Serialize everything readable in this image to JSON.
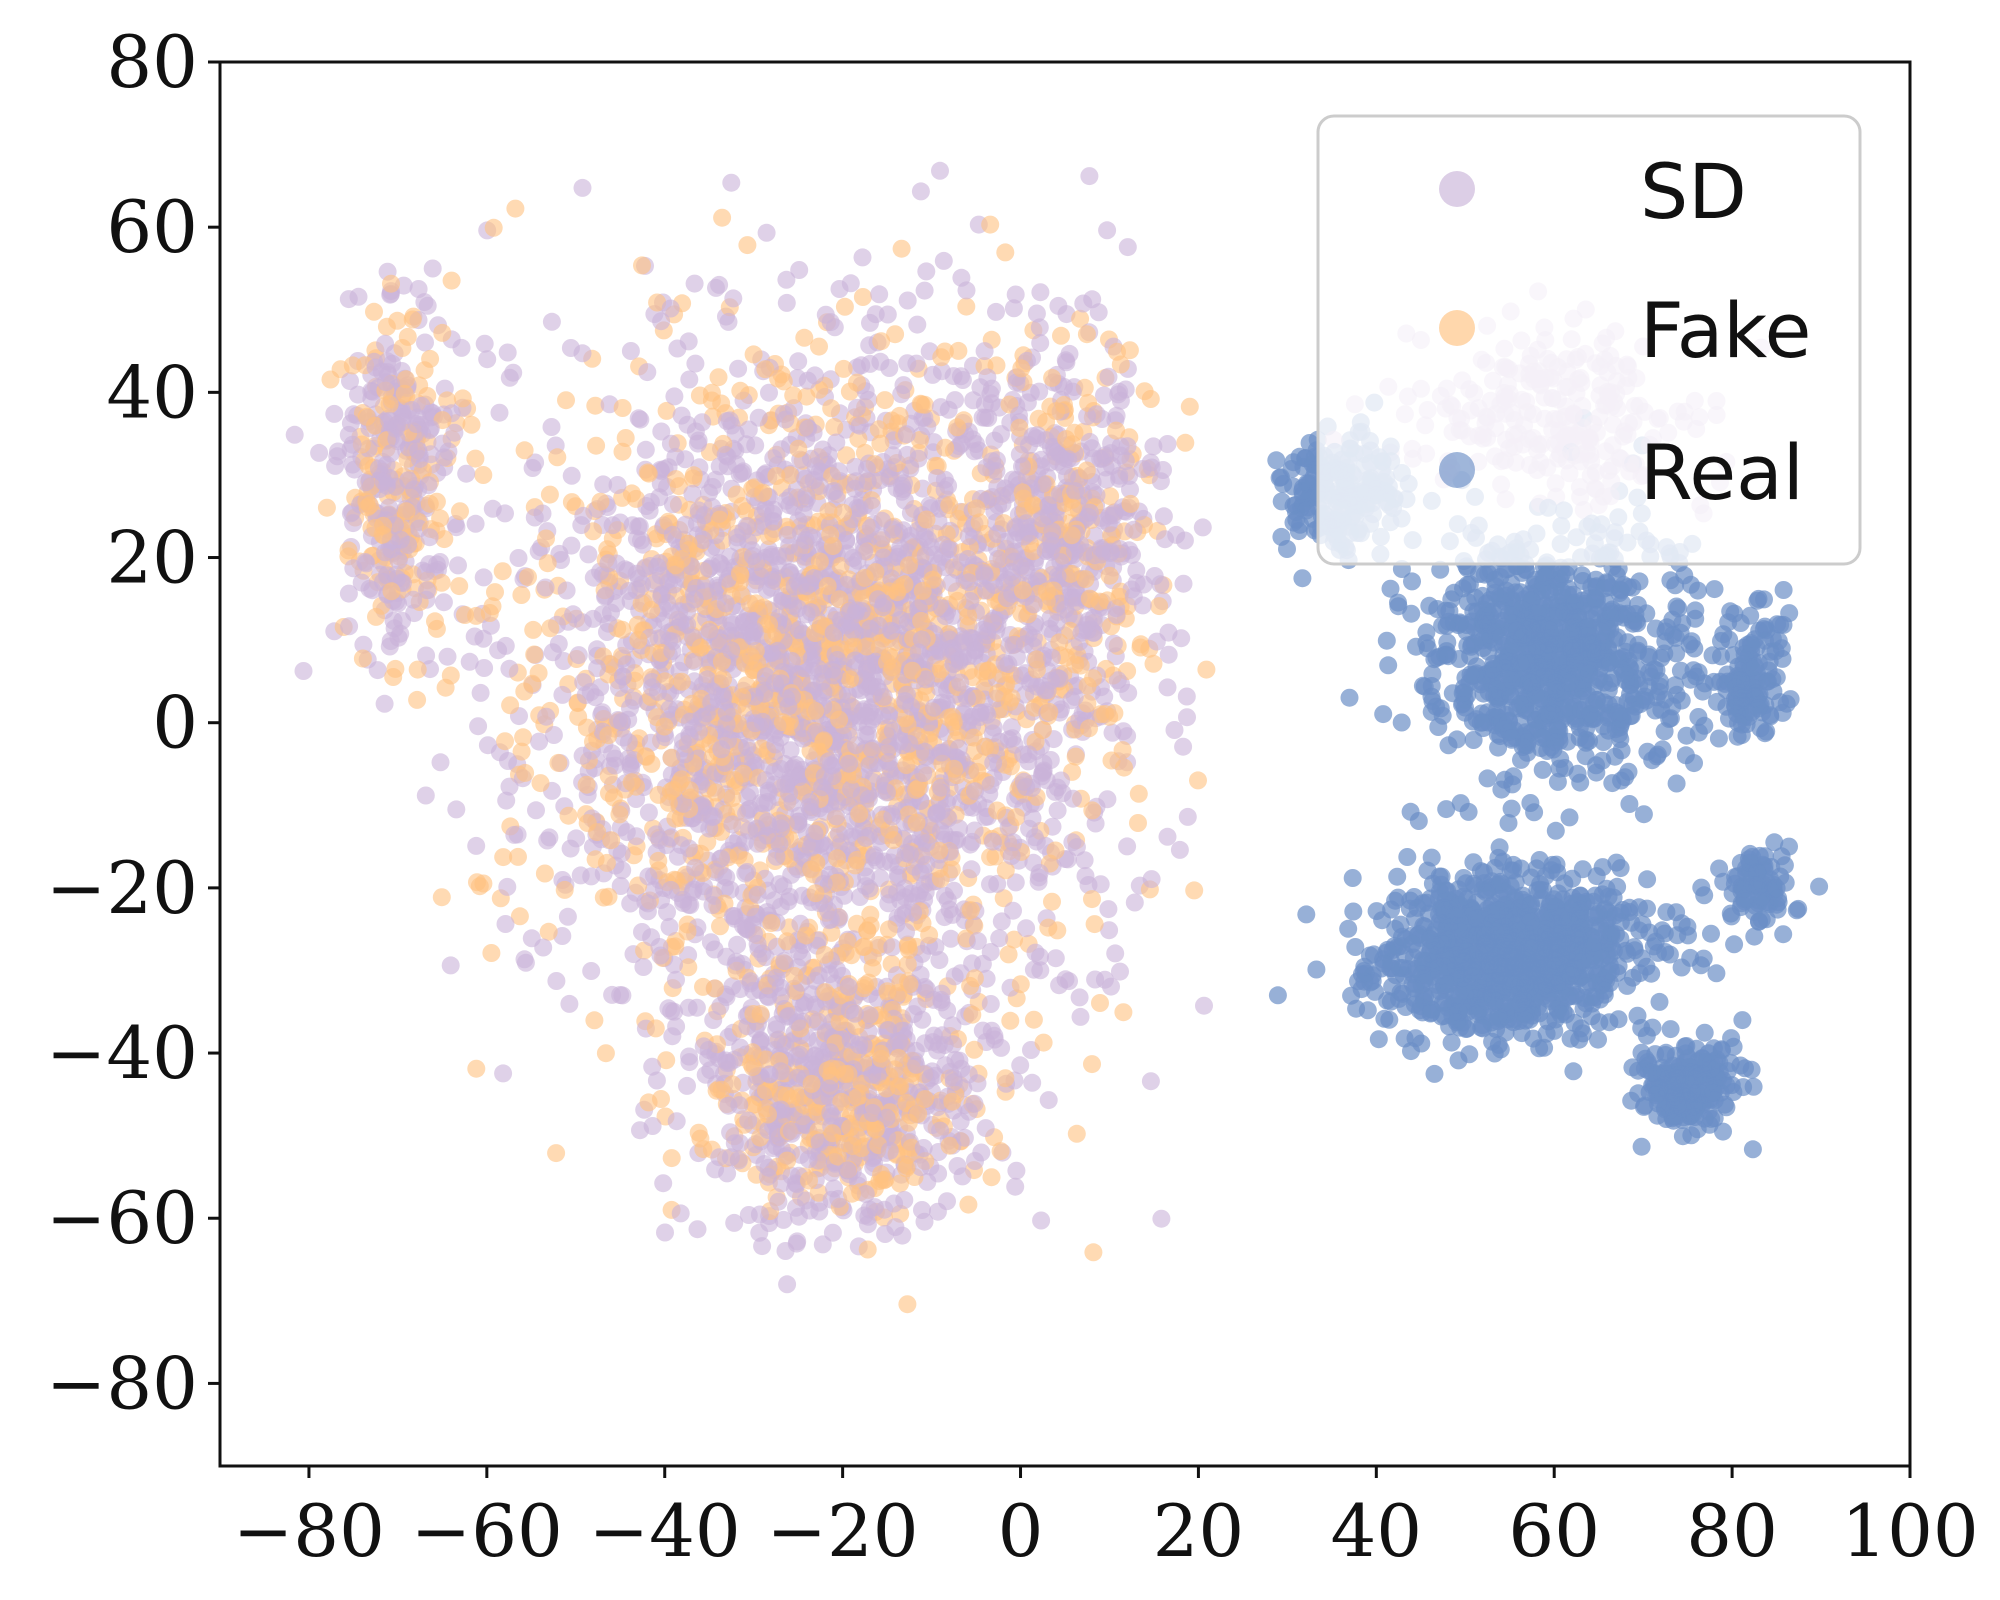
{
  "chart_data": {
    "type": "scatter",
    "title": "",
    "xlabel": "",
    "ylabel": "",
    "xlim": [
      -90,
      100
    ],
    "ylim": [
      -90,
      80
    ],
    "x_ticks": [
      -80,
      -60,
      -40,
      -20,
      0,
      20,
      40,
      60,
      80,
      100
    ],
    "y_ticks": [
      -80,
      -60,
      -40,
      -20,
      0,
      20,
      40,
      60,
      80
    ],
    "x_tick_labels": [
      "−80",
      "−60",
      "−40",
      "−20",
      "0",
      "20",
      "40",
      "60",
      "80",
      "100"
    ],
    "y_tick_labels": [
      "−80",
      "−60",
      "−40",
      "−20",
      "0",
      "20",
      "40",
      "60",
      "80"
    ],
    "grid": false,
    "legend_position": "top-right",
    "series": [
      {
        "name": "SD",
        "color": "#c9b3d9",
        "clusters": [
          {
            "cx": -22,
            "cy": 5,
            "sx": 30,
            "sy": 38,
            "n": 2300
          },
          {
            "cx": -70,
            "cy": 30,
            "sx": 6,
            "sy": 20,
            "n": 250
          },
          {
            "cx": -20,
            "cy": -45,
            "sx": 14,
            "sy": 14,
            "n": 500
          },
          {
            "cx": 5,
            "cy": 25,
            "sx": 10,
            "sy": 20,
            "n": 300
          },
          {
            "cx": 60,
            "cy": 38,
            "sx": 15,
            "sy": 10,
            "n": 250
          }
        ],
        "xrange": [
          -85,
          90
        ],
        "yrange": [
          -84,
          67
        ]
      },
      {
        "name": "Fake",
        "color": "#ffc180",
        "clusters": [
          {
            "cx": -22,
            "cy": 5,
            "sx": 30,
            "sy": 38,
            "n": 1300
          },
          {
            "cx": -70,
            "cy": 30,
            "sx": 6,
            "sy": 20,
            "n": 150
          },
          {
            "cx": -20,
            "cy": -45,
            "sx": 14,
            "sy": 14,
            "n": 300
          },
          {
            "cx": 5,
            "cy": 25,
            "sx": 10,
            "sy": 20,
            "n": 150
          }
        ],
        "xrange": [
          -85,
          25
        ],
        "yrange": [
          -84,
          67
        ]
      },
      {
        "name": "Real",
        "color": "#6b8fc6",
        "clusters": [
          {
            "cx": 60,
            "cy": 8,
            "sx": 13,
            "sy": 14,
            "n": 900
          },
          {
            "cx": 55,
            "cy": -28,
            "sx": 14,
            "sy": 9,
            "n": 1000
          },
          {
            "cx": 75,
            "cy": -44,
            "sx": 5,
            "sy": 5,
            "n": 200
          },
          {
            "cx": 82,
            "cy": 5,
            "sx": 4,
            "sy": 7,
            "n": 120
          },
          {
            "cx": 36,
            "cy": 28,
            "sx": 6,
            "sy": 6,
            "n": 200
          },
          {
            "cx": 83,
            "cy": -20,
            "sx": 4,
            "sy": 5,
            "n": 80
          }
        ],
        "xrange": [
          20,
          90
        ],
        "yrange": [
          -55,
          40
        ]
      }
    ]
  }
}
